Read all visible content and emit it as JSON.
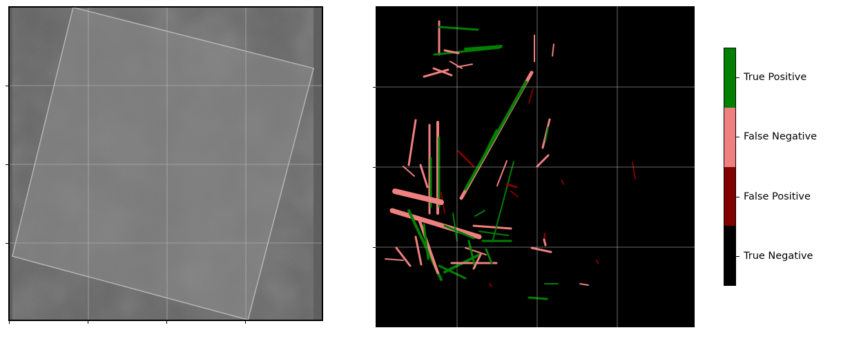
{
  "chart_data": {
    "type": "heatmap",
    "panels": [
      {
        "name": "satellite-scene",
        "grid": true
      },
      {
        "name": "classification-map",
        "grid": true,
        "classes": [
          {
            "label": "True Positive",
            "color": "#008000"
          },
          {
            "label": "False Negative",
            "color": "#f08080"
          },
          {
            "label": "False Positive",
            "color": "#800000"
          },
          {
            "label": "True Negative",
            "color": "#000000"
          }
        ]
      }
    ],
    "colorbar": {
      "labels": [
        "True Positive",
        "False Negative",
        "False Positive",
        "True Negative"
      ],
      "colors": [
        "#008000",
        "#f08080",
        "#800000",
        "#000000"
      ]
    }
  }
}
